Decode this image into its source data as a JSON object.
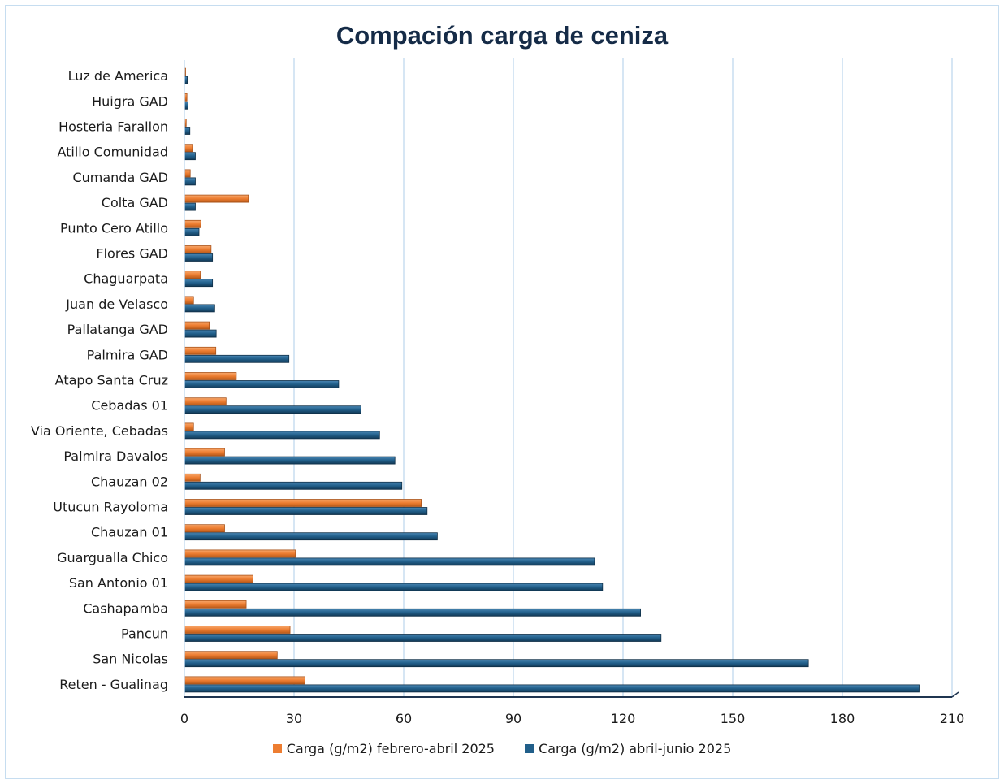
{
  "chart_data": {
    "type": "bar",
    "orientation": "horizontal",
    "title": "Compación carga de ceniza",
    "categories": [
      "Luz de America",
      "Huigra GAD",
      "Hosteria Farallon",
      "Atillo Comunidad",
      "Cumanda GAD",
      "Colta GAD",
      "Punto Cero Atillo",
      "Flores GAD",
      "Chaguarpata",
      "Juan de Velasco",
      "Pallatanga GAD",
      "Palmira GAD",
      "Atapo Santa Cruz",
      "Cebadas 01",
      "Via Oriente, Cebadas",
      "Palmira Davalos",
      "Chauzan 02",
      "Utucun Rayoloma",
      "Chauzan 01",
      "Guargualla Chico",
      "San Antonio 01",
      "Cashapamba",
      "Pancun",
      "San Nicolas",
      "Reten - Gualinag"
    ],
    "series": [
      {
        "name": "Carga (g/m2) febrero-abril 2025",
        "color": "#ed7d31",
        "values": [
          0.3,
          0.7,
          0.5,
          2.2,
          1.6,
          17.5,
          4.5,
          7.3,
          4.4,
          2.5,
          6.8,
          8.6,
          14.2,
          11.4,
          2.5,
          11.0,
          4.3,
          64.8,
          11.0,
          30.4,
          18.8,
          16.9,
          28.9,
          25.4,
          33.0
        ]
      },
      {
        "name": "Carga (g/m2) abril-junio 2025",
        "color": "#215f8a",
        "values": [
          0.8,
          1.0,
          1.5,
          3.0,
          3.0,
          3.0,
          4.0,
          7.7,
          7.7,
          8.3,
          8.7,
          28.6,
          42.2,
          48.3,
          53.4,
          57.6,
          59.5,
          66.4,
          69.2,
          112.2,
          114.4,
          124.8,
          130.4,
          170.7,
          201.0
        ]
      }
    ],
    "xlim": [
      0,
      210
    ],
    "xticks": [
      "0",
      "30",
      "60",
      "90",
      "120",
      "150",
      "180",
      "210"
    ],
    "grid": true,
    "legend_position": "bottom"
  }
}
